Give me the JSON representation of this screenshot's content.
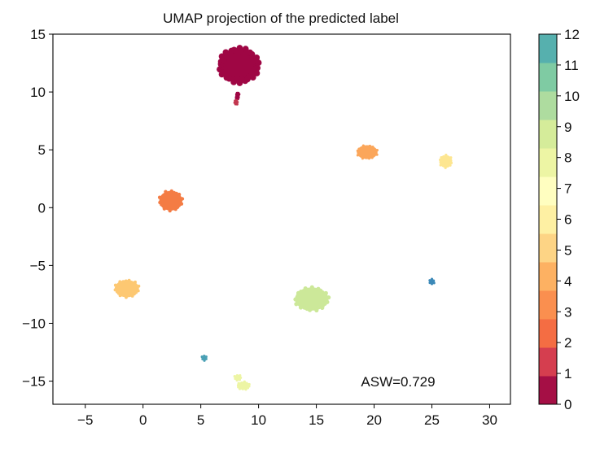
{
  "chart_data": {
    "type": "scatter",
    "title": "UMAP projection of the predicted label",
    "xlabel": "",
    "ylabel": "",
    "xlim": [
      -7.8,
      31.8
    ],
    "ylim": [
      -17,
      15
    ],
    "xticks": [
      -5,
      0,
      5,
      10,
      15,
      20,
      25,
      30
    ],
    "yticks": [
      -15,
      -10,
      -5,
      0,
      5,
      10,
      15
    ],
    "annotation": "ASW=0.729",
    "grid": false,
    "colormap": "Spectral (discrete)",
    "colorbar": {
      "ticks": [
        0,
        1,
        2,
        3,
        4,
        5,
        6,
        7,
        8,
        9,
        10,
        11,
        12
      ],
      "colors": [
        "#a50f45",
        "#d53e4f",
        "#f46d43",
        "#fa8f4f",
        "#fdb162",
        "#fdd485",
        "#fef0a3",
        "#fffec0",
        "#edf5a4",
        "#d5ec9a",
        "#aedc9f",
        "#7fcba3",
        "#56b0ae"
      ]
    },
    "clusters": [
      {
        "label": 0,
        "color": "#9f0644",
        "x": 8.3,
        "y": 12.3,
        "rx": 1.7,
        "ry": 1.5
      },
      {
        "label": 0,
        "color": "#9f0644",
        "x": 8.2,
        "y": 9.8,
        "rx": 0.12,
        "ry": 0.15
      },
      {
        "label": 0,
        "color": "#9f0644",
        "x": 8.15,
        "y": 9.5,
        "rx": 0.12,
        "ry": 0.15
      },
      {
        "label": 1,
        "color": "#c2364f",
        "x": 8.05,
        "y": 9.1,
        "rx": 0.15,
        "ry": 0.2
      },
      {
        "label": 3,
        "color": "#f47c44",
        "x": 2.4,
        "y": 0.6,
        "rx": 1.0,
        "ry": 0.85
      },
      {
        "label": 4,
        "color": "#fba65a",
        "x": 19.4,
        "y": 4.8,
        "rx": 0.9,
        "ry": 0.6
      },
      {
        "label": 5,
        "color": "#fdc872",
        "x": -1.4,
        "y": -7.0,
        "rx": 1.05,
        "ry": 0.75
      },
      {
        "label": 6,
        "color": "#fde691",
        "x": 26.2,
        "y": 4.0,
        "rx": 0.55,
        "ry": 0.55
      },
      {
        "label": 8,
        "color": "#edf5a4",
        "x": 8.7,
        "y": -15.4,
        "rx": 0.55,
        "ry": 0.35
      },
      {
        "label": 8,
        "color": "#edf5a4",
        "x": 8.2,
        "y": -14.7,
        "rx": 0.3,
        "ry": 0.25
      },
      {
        "label": 9,
        "color": "#cce899",
        "x": 14.6,
        "y": -7.9,
        "rx": 1.45,
        "ry": 1.0
      },
      {
        "label": 12,
        "color": "#3c89b8",
        "x": 25.0,
        "y": -6.4,
        "rx": 0.22,
        "ry": 0.22
      },
      {
        "label": 12,
        "color": "#4aa0b5",
        "x": 5.3,
        "y": -13.0,
        "rx": 0.22,
        "ry": 0.22
      }
    ]
  }
}
